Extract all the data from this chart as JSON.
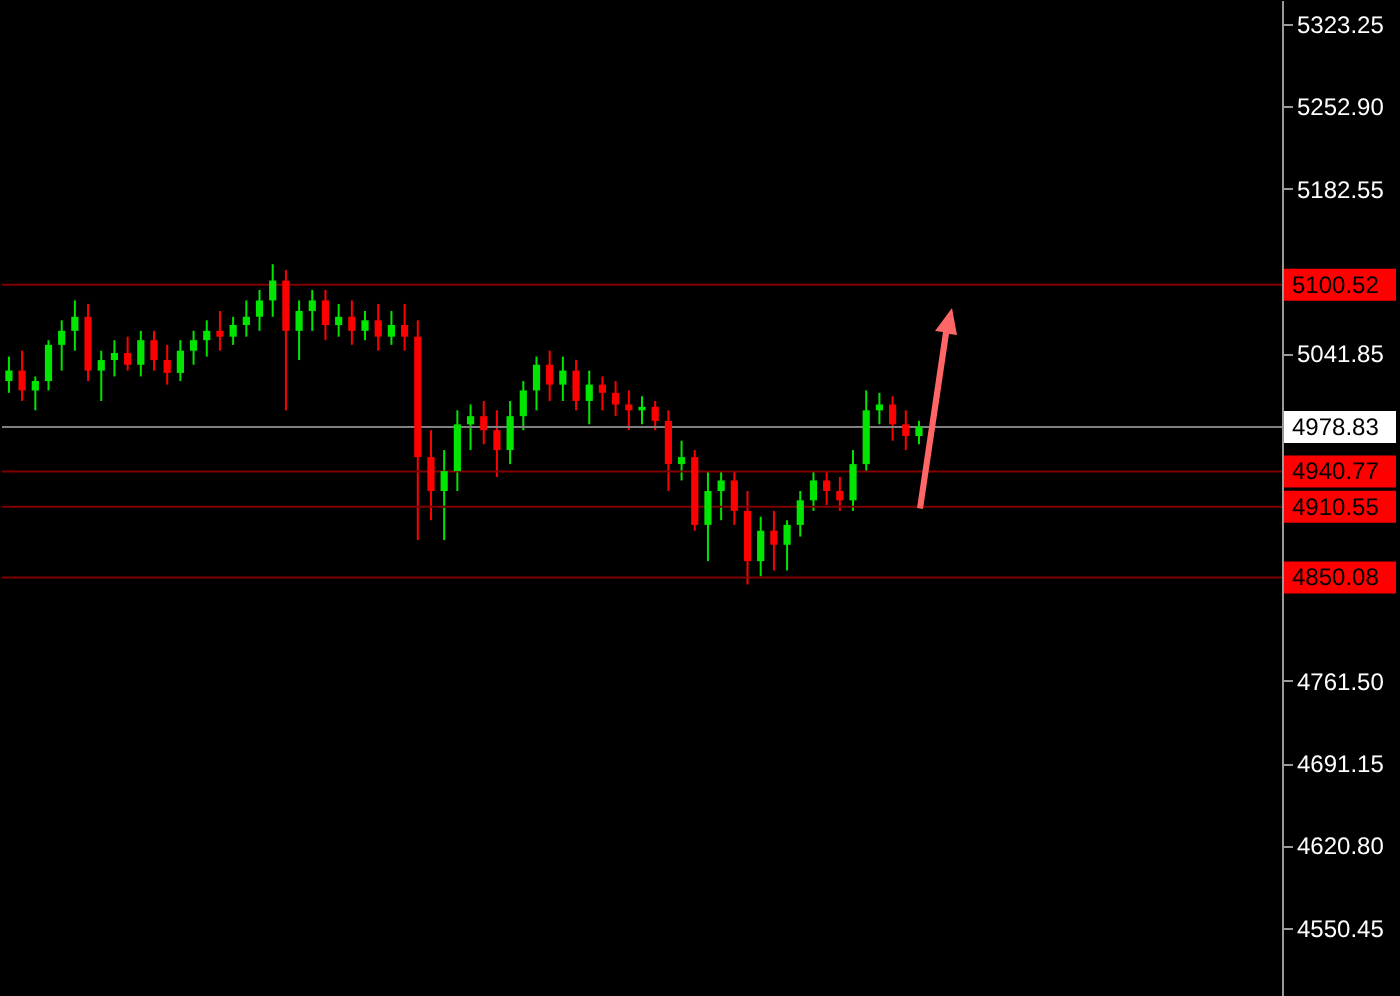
{
  "chart_data": {
    "type": "candlestick",
    "categories": [
      null,
      null,
      null,
      null,
      null,
      null,
      null,
      null,
      null,
      null,
      null,
      null,
      null,
      null,
      null,
      null,
      null,
      null,
      null,
      null,
      null,
      null,
      null,
      null,
      null,
      null,
      null,
      null,
      null,
      null,
      null,
      null,
      null,
      null,
      null,
      null,
      null,
      null,
      null,
      null,
      null,
      null,
      null,
      null,
      null,
      null,
      null,
      null,
      null,
      null,
      null,
      null,
      null,
      null,
      null,
      null,
      null,
      null,
      null,
      null,
      null,
      null,
      null,
      null,
      null,
      null,
      null,
      null,
      null,
      null,
      null,
      null,
      null,
      null,
      null,
      null,
      null,
      null,
      null,
      null,
      null,
      null,
      null,
      null,
      null,
      null,
      null,
      null,
      null,
      null,
      null,
      null,
      null,
      null,
      null,
      null,
      null
    ],
    "ohlc": [
      [
        5018,
        5039,
        5008,
        5027
      ],
      [
        5027,
        5044,
        5001,
        5010
      ],
      [
        5010,
        5022,
        4993,
        5018
      ],
      [
        5018,
        5053,
        5010,
        5049
      ],
      [
        5049,
        5070,
        5027,
        5061
      ],
      [
        5061,
        5087,
        5044,
        5073
      ],
      [
        5073,
        5084,
        5018,
        5027
      ],
      [
        5027,
        5044,
        5001,
        5036
      ],
      [
        5036,
        5053,
        5022,
        5042
      ],
      [
        5042,
        5056,
        5027,
        5032
      ],
      [
        5032,
        5061,
        5022,
        5053
      ],
      [
        5053,
        5061,
        5027,
        5036
      ],
      [
        5036,
        5049,
        5015,
        5025
      ],
      [
        5025,
        5053,
        5018,
        5044
      ],
      [
        5044,
        5061,
        5032,
        5053
      ],
      [
        5053,
        5070,
        5039,
        5061
      ],
      [
        5061,
        5078,
        5044,
        5056
      ],
      [
        5056,
        5073,
        5049,
        5066
      ],
      [
        5066,
        5087,
        5056,
        5073
      ],
      [
        5073,
        5096,
        5061,
        5087
      ],
      [
        5087,
        5118,
        5073,
        5104
      ],
      [
        5104,
        5113,
        4993,
        5061
      ],
      [
        5061,
        5087,
        5036,
        5078
      ],
      [
        5078,
        5096,
        5061,
        5087
      ],
      [
        5087,
        5096,
        5053,
        5066
      ],
      [
        5066,
        5084,
        5056,
        5073
      ],
      [
        5073,
        5087,
        5049,
        5061
      ],
      [
        5061,
        5078,
        5053,
        5070
      ],
      [
        5070,
        5084,
        5044,
        5056
      ],
      [
        5056,
        5078,
        5049,
        5066
      ],
      [
        5066,
        5084,
        5044,
        5056
      ],
      [
        5056,
        5070,
        4882,
        4953
      ],
      [
        4953,
        4976,
        4899,
        4924
      ],
      [
        4924,
        4959,
        4882,
        4941
      ],
      [
        4941,
        4993,
        4924,
        4981
      ],
      [
        4981,
        4998,
        4959,
        4988
      ],
      [
        4988,
        5001,
        4964,
        4976
      ],
      [
        4976,
        4993,
        4936,
        4959
      ],
      [
        4959,
        5001,
        4947,
        4988
      ],
      [
        4988,
        5018,
        4976,
        5010
      ],
      [
        5010,
        5039,
        4993,
        5032
      ],
      [
        5032,
        5044,
        5001,
        5015
      ],
      [
        5015,
        5039,
        5001,
        5027
      ],
      [
        5027,
        5036,
        4993,
        5001
      ],
      [
        5001,
        5027,
        4981,
        5015
      ],
      [
        5015,
        5022,
        4993,
        5008
      ],
      [
        5008,
        5018,
        4988,
        4998
      ],
      [
        4998,
        5010,
        4976,
        4993
      ],
      [
        4993,
        5005,
        4981,
        4996
      ],
      [
        4996,
        5001,
        4976,
        4984
      ],
      [
        4984,
        4993,
        4924,
        4947
      ],
      [
        4947,
        4967,
        4933,
        4953
      ],
      [
        4953,
        4959,
        4890,
        4895
      ],
      [
        4895,
        4941,
        4864,
        4924
      ],
      [
        4924,
        4941,
        4899,
        4933
      ],
      [
        4933,
        4941,
        4895,
        4907
      ],
      [
        4907,
        4924,
        4844,
        4864
      ],
      [
        4864,
        4902,
        4851,
        4890
      ],
      [
        4890,
        4907,
        4856,
        4878
      ],
      [
        4878,
        4899,
        4856,
        4895
      ],
      [
        4895,
        4924,
        4885,
        4916
      ],
      [
        4916,
        4941,
        4907,
        4933
      ],
      [
        4933,
        4941,
        4912,
        4924
      ],
      [
        4924,
        4936,
        4907,
        4916
      ],
      [
        4916,
        4959,
        4907,
        4947
      ],
      [
        4947,
        5010,
        4941,
        4993
      ],
      [
        4993,
        5008,
        4981,
        4998
      ],
      [
        4998,
        5005,
        4967,
        4981
      ],
      [
        4981,
        4993,
        4959,
        4971
      ],
      [
        4971,
        4984,
        4964,
        4979
      ],
      null,
      null,
      null,
      null,
      null,
      null,
      null,
      null,
      null,
      null,
      null,
      null,
      null,
      null,
      null,
      null,
      null,
      null,
      null,
      null,
      null,
      null,
      null,
      null,
      null,
      null,
      null
    ],
    "colors": [
      "#00e600",
      "#ff0000",
      "#00e600",
      "#00e600",
      "#00e600",
      "#00e600",
      "#ff0000",
      "#00e600",
      "#00e600",
      "#ff0000",
      "#00e600",
      "#ff0000",
      "#ff0000",
      "#00e600",
      "#00e600",
      "#00e600",
      "#ff0000",
      "#00e600",
      "#00e600",
      "#00e600",
      "#00e600",
      "#ff0000",
      "#00e600",
      "#00e600",
      "#ff0000",
      "#00e600",
      "#ff0000",
      "#00e600",
      "#ff0000",
      "#00e600",
      "#ff0000",
      "#ff0000",
      "#ff0000",
      "#00e600",
      "#00e600",
      "#00e600",
      "#ff0000",
      "#ff0000",
      "#00e600",
      "#00e600",
      "#00e600",
      "#ff0000",
      "#00e600",
      "#ff0000",
      "#00e600",
      "#ff0000",
      "#ff0000",
      "#ff0000",
      "#00e600",
      "#ff0000",
      "#ff0000",
      "#00e600",
      "#ff0000",
      "#00e600",
      "#00e600",
      "#ff0000",
      "#ff0000",
      "#00e600",
      "#ff0000",
      "#00e600",
      "#00e600",
      "#00e600",
      "#ff0000",
      "#ff0000",
      "#00e600",
      "#00e600",
      "#00e600",
      "#ff0000",
      "#ff0000",
      "#00e600",
      null,
      null,
      null,
      null,
      null,
      null,
      null,
      null,
      null,
      null,
      null,
      null,
      null,
      null,
      null,
      null,
      null,
      null,
      null,
      null,
      null,
      null,
      null,
      null,
      null,
      null,
      null
    ],
    "ylim": [
      4492,
      5344
    ],
    "yticks": [
      {
        "value": 5323.25,
        "label": "5323.25"
      },
      {
        "value": 5252.9,
        "label": "5252.90"
      },
      {
        "value": 5182.55,
        "label": "5182.55"
      },
      {
        "value": 5041.85,
        "label": "5041.85"
      },
      {
        "value": 4761.5,
        "label": "4761.50"
      },
      {
        "value": 4691.15,
        "label": "4691.15"
      },
      {
        "value": 4620.8,
        "label": "4620.80"
      },
      {
        "value": 4550.45,
        "label": "4550.45"
      }
    ],
    "tick_labels": "y",
    "ref_lines": [
      {
        "axis": "y",
        "value": 5100.52,
        "label": "5100.52",
        "color": "#800000"
      },
      {
        "axis": "y",
        "value": 4978.83,
        "label": "4978.83",
        "color": "#808080"
      },
      {
        "axis": "y",
        "value": 4940.77,
        "label": "4940.77",
        "color": "#800000"
      },
      {
        "axis": "y",
        "value": 4910.55,
        "label": "4910.55",
        "color": "#800000"
      },
      {
        "axis": "y",
        "value": 4850.08,
        "label": "4850.08",
        "color": "#800000"
      }
    ]
  }
}
